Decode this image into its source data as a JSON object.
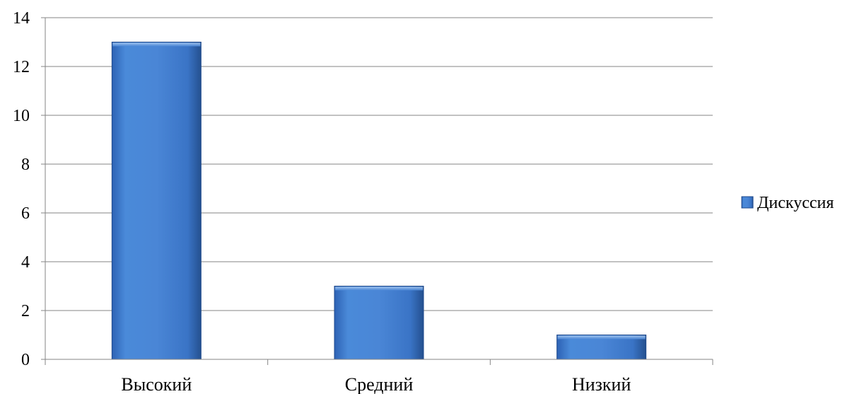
{
  "chart_data": {
    "type": "bar",
    "categories": [
      "Высокий",
      "Средний",
      "Низкий"
    ],
    "series": [
      {
        "name": "Дискуссия",
        "values": [
          13,
          3,
          1
        ]
      }
    ],
    "title": "",
    "xlabel": "",
    "ylabel": "",
    "ylim": [
      0,
      14
    ],
    "yticks": [
      "0",
      "2",
      "4",
      "6",
      "8",
      "10",
      "12",
      "14"
    ],
    "grid": "horizontal",
    "legend": "right",
    "colors": {
      "bar_top": "#4f8fe0",
      "bar_mid": "#3a76cc",
      "bar_bottom": "#2a5aa6",
      "bar_edge": "#1f4a8c",
      "grid": "#868686",
      "axis": "#868686"
    }
  }
}
